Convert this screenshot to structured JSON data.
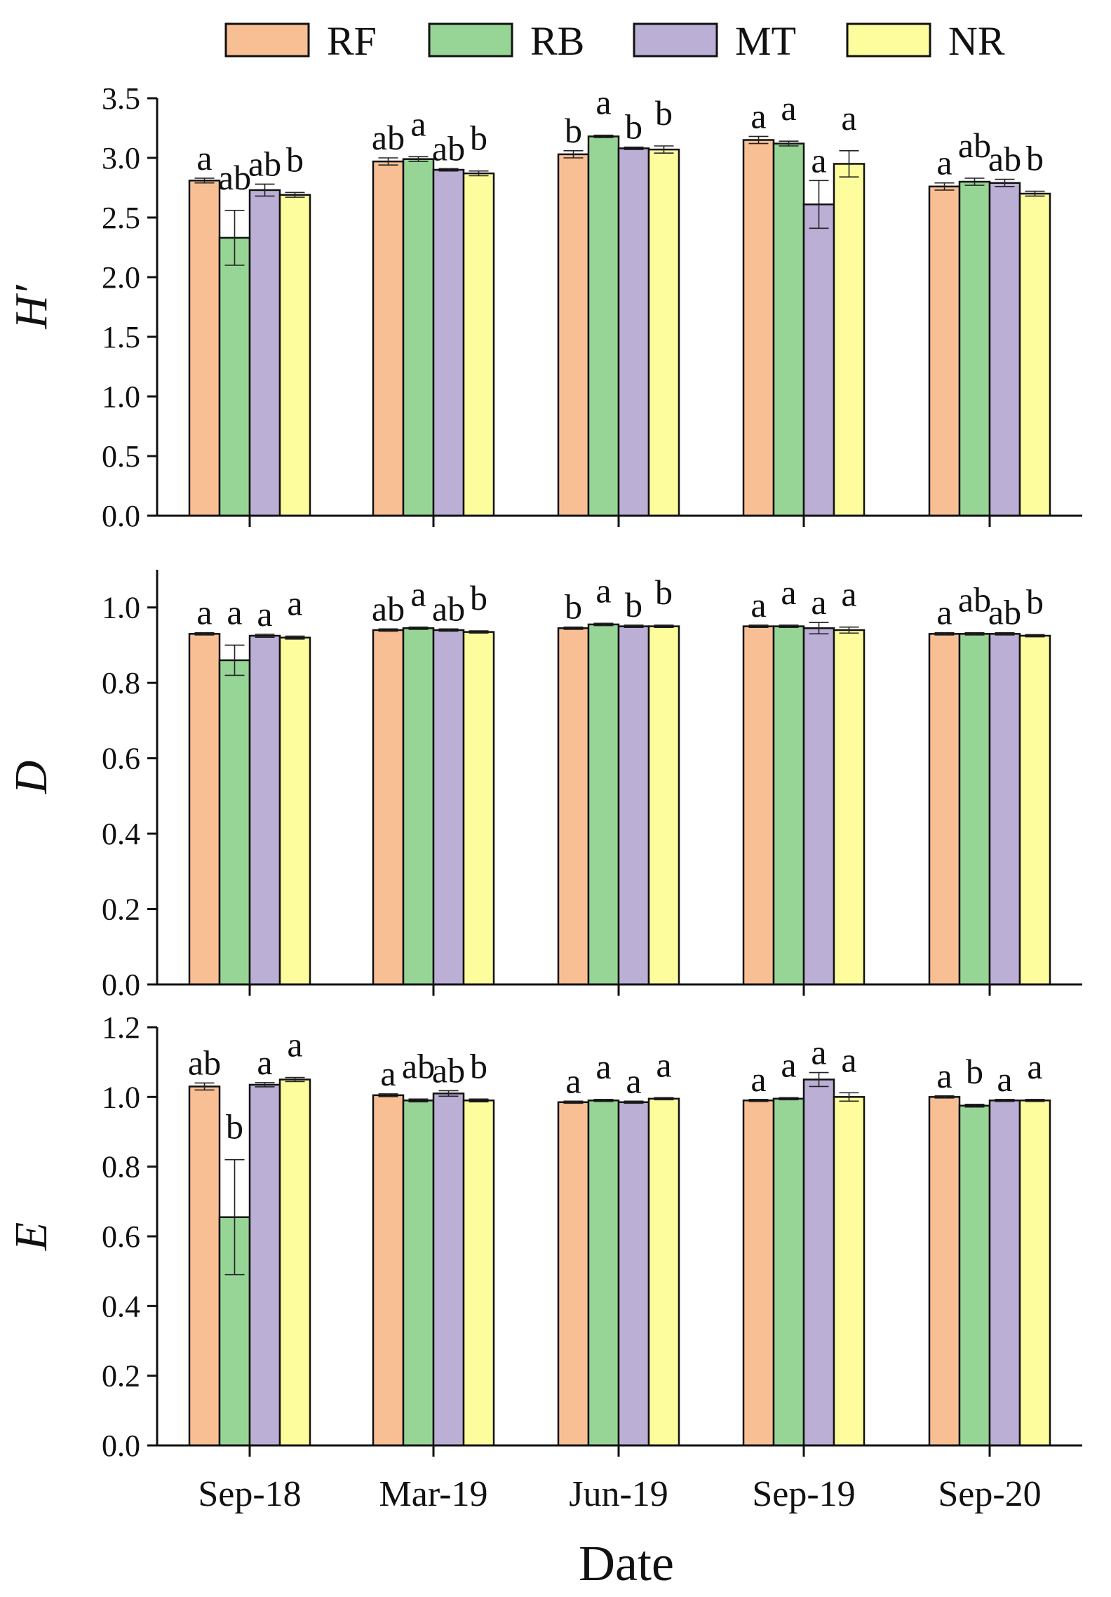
{
  "figure": {
    "legend": [
      {
        "label": "RF",
        "color": "#f9bf94"
      },
      {
        "label": "RB",
        "color": "#97d596"
      },
      {
        "label": "MT",
        "color": "#bcafd6"
      },
      {
        "label": "NR",
        "color": "#fdfd9e"
      }
    ],
    "x_axis_label": "Date"
  },
  "chart_data": [
    {
      "type": "bar",
      "title": "",
      "ylabel": "H′",
      "xlabel": "Date",
      "ylim": [
        0,
        3.5
      ],
      "yticks": [
        "0.0",
        "0.5",
        "1.0",
        "1.5",
        "2.0",
        "2.5",
        "3.0",
        "3.5"
      ],
      "categories": [
        "Sep-18",
        "Mar-19",
        "Jun-19",
        "Sep-19",
        "Sep-20"
      ],
      "series": [
        {
          "name": "RF",
          "values": [
            2.81,
            2.97,
            3.03,
            3.15,
            2.76
          ],
          "errors": [
            0.02,
            0.03,
            0.03,
            0.03,
            0.03
          ],
          "letters": [
            "a",
            "ab",
            "b",
            "a",
            "a"
          ]
        },
        {
          "name": "RB",
          "values": [
            2.33,
            2.99,
            3.18,
            3.12,
            2.8
          ],
          "errors": [
            0.23,
            0.02,
            0.01,
            0.02,
            0.03
          ],
          "letters": [
            "ab",
            "a",
            "a",
            "a",
            "ab"
          ]
        },
        {
          "name": "MT",
          "values": [
            2.73,
            2.9,
            3.08,
            2.61,
            2.79
          ],
          "errors": [
            0.05,
            0.01,
            0.01,
            0.2,
            0.03
          ],
          "letters": [
            "ab",
            "ab",
            "b",
            "a",
            "ab"
          ]
        },
        {
          "name": "NR",
          "values": [
            2.69,
            2.87,
            3.07,
            2.95,
            2.7
          ],
          "errors": [
            0.02,
            0.02,
            0.03,
            0.11,
            0.02
          ],
          "letters": [
            "b",
            "b",
            "b",
            "a",
            "b"
          ]
        }
      ]
    },
    {
      "type": "bar",
      "title": "",
      "ylabel": "D",
      "xlabel": "Date",
      "ylim": [
        0,
        1.1
      ],
      "yticks": [
        "0.0",
        "0.2",
        "0.4",
        "0.6",
        "0.8",
        "1.0"
      ],
      "categories": [
        "Sep-18",
        "Mar-19",
        "Jun-19",
        "Sep-19",
        "Sep-20"
      ],
      "series": [
        {
          "name": "RF",
          "values": [
            0.93,
            0.94,
            0.945,
            0.95,
            0.93
          ],
          "errors": [
            0.003,
            0.003,
            0.003,
            0.003,
            0.003
          ],
          "letters": [
            "a",
            "ab",
            "b",
            "a",
            "a"
          ]
        },
        {
          "name": "RB",
          "values": [
            0.86,
            0.945,
            0.955,
            0.95,
            0.93
          ],
          "errors": [
            0.04,
            0.003,
            0.003,
            0.003,
            0.003
          ],
          "letters": [
            "a",
            "a",
            "a",
            "a",
            "ab"
          ]
        },
        {
          "name": "MT",
          "values": [
            0.925,
            0.94,
            0.95,
            0.945,
            0.93
          ],
          "errors": [
            0.004,
            0.003,
            0.003,
            0.015,
            0.003
          ],
          "letters": [
            "a",
            "ab",
            "b",
            "a",
            "ab"
          ]
        },
        {
          "name": "NR",
          "values": [
            0.92,
            0.935,
            0.95,
            0.94,
            0.925
          ],
          "errors": [
            0.004,
            0.003,
            0.003,
            0.008,
            0.003
          ],
          "letters": [
            "a",
            "b",
            "b",
            "a",
            "b"
          ]
        }
      ]
    },
    {
      "type": "bar",
      "title": "",
      "ylabel": "E",
      "xlabel": "Date",
      "ylim": [
        0,
        1.2
      ],
      "yticks": [
        "0.0",
        "0.2",
        "0.4",
        "0.6",
        "0.8",
        "1.0",
        "1.2"
      ],
      "categories": [
        "Sep-18",
        "Mar-19",
        "Jun-19",
        "Sep-19",
        "Sep-20"
      ],
      "series": [
        {
          "name": "RF",
          "values": [
            1.03,
            1.005,
            0.985,
            0.99,
            1.0
          ],
          "errors": [
            0.01,
            0.004,
            0.003,
            0.003,
            0.003
          ],
          "letters": [
            "ab",
            "a",
            "a",
            "a",
            "a"
          ]
        },
        {
          "name": "RB",
          "values": [
            0.655,
            0.99,
            0.99,
            0.995,
            0.975
          ],
          "errors": [
            0.165,
            0.004,
            0.003,
            0.003,
            0.004
          ],
          "letters": [
            "b",
            "ab",
            "a",
            "a",
            "b"
          ]
        },
        {
          "name": "MT",
          "values": [
            1.035,
            1.01,
            0.985,
            1.05,
            0.99
          ],
          "errors": [
            0.006,
            0.008,
            0.003,
            0.02,
            0.003
          ],
          "letters": [
            "a",
            "ab",
            "a",
            "a",
            "a"
          ]
        },
        {
          "name": "NR",
          "values": [
            1.05,
            0.99,
            0.995,
            1.0,
            0.99
          ],
          "errors": [
            0.006,
            0.004,
            0.003,
            0.012,
            0.003
          ],
          "letters": [
            "a",
            "b",
            "a",
            "a",
            "a"
          ]
        }
      ]
    }
  ]
}
